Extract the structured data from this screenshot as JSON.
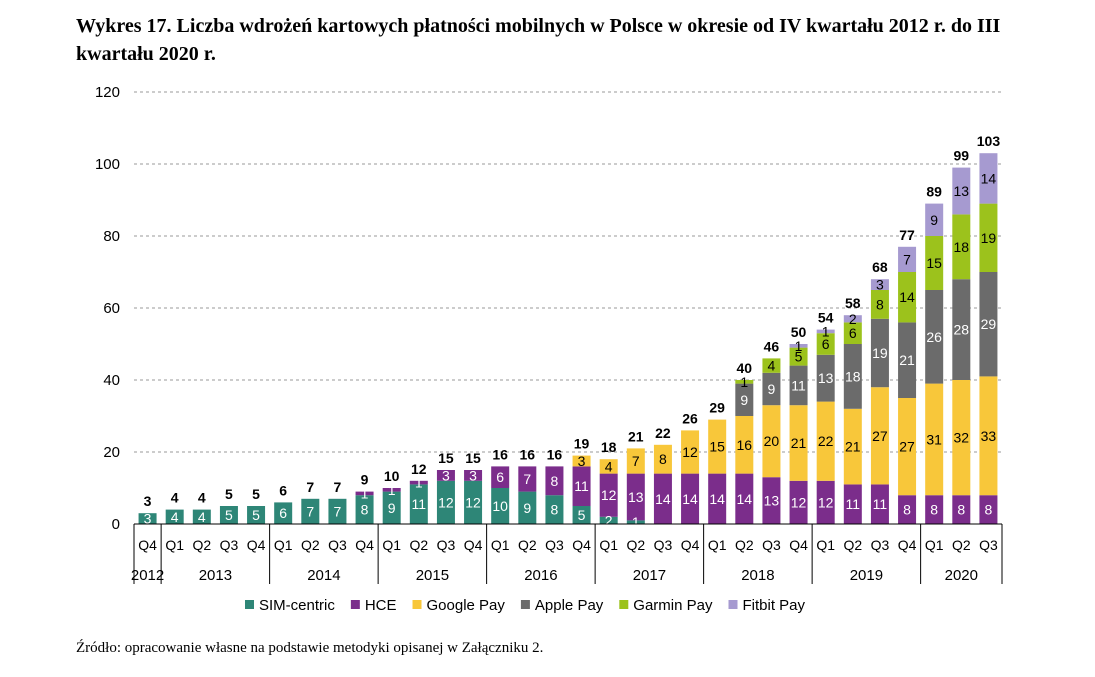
{
  "title": "Wykres 17. Liczba wdrożeń kartowych płatności mobilnych w Polsce w okresie od IV kwartału 2012 r. do III kwartału 2020 r.",
  "source": "Źródło: opracowanie własne na podstawie metodyki opisanej w Załączniku 2.",
  "chart_data": {
    "type": "bar",
    "stacked": true,
    "categories": [
      "Q4",
      "Q1",
      "Q2",
      "Q3",
      "Q4",
      "Q1",
      "Q2",
      "Q3",
      "Q4",
      "Q1",
      "Q2",
      "Q3",
      "Q4",
      "Q1",
      "Q2",
      "Q3",
      "Q4",
      "Q1",
      "Q2",
      "Q3",
      "Q4",
      "Q1",
      "Q2",
      "Q3",
      "Q4",
      "Q1",
      "Q2",
      "Q3",
      "Q4",
      "Q1",
      "Q2",
      "Q3"
    ],
    "years": [
      {
        "label": "2012",
        "count": 1
      },
      {
        "label": "2013",
        "count": 4
      },
      {
        "label": "2014",
        "count": 4
      },
      {
        "label": "2015",
        "count": 4
      },
      {
        "label": "2016",
        "count": 4
      },
      {
        "label": "2017",
        "count": 4
      },
      {
        "label": "2018",
        "count": 4
      },
      {
        "label": "2019",
        "count": 4
      },
      {
        "label": "2020",
        "count": 3
      }
    ],
    "series": [
      {
        "name": "SIM-centric",
        "color": "#2e8677",
        "values": [
          3,
          4,
          4,
          5,
          5,
          6,
          7,
          7,
          8,
          9,
          11,
          12,
          12,
          10,
          9,
          8,
          5,
          2,
          1,
          0,
          0,
          0,
          0,
          0,
          0,
          0,
          0,
          0,
          0,
          0,
          0,
          0
        ]
      },
      {
        "name": "HCE",
        "color": "#7b2d8b",
        "values": [
          0,
          0,
          0,
          0,
          0,
          0,
          0,
          0,
          1,
          1,
          1,
          3,
          3,
          6,
          7,
          8,
          11,
          12,
          13,
          14,
          14,
          14,
          14,
          13,
          12,
          12,
          11,
          11,
          8,
          8,
          8,
          8
        ]
      },
      {
        "name": "Google Pay",
        "color": "#f8c73a",
        "values": [
          0,
          0,
          0,
          0,
          0,
          0,
          0,
          0,
          0,
          0,
          0,
          0,
          0,
          0,
          0,
          0,
          3,
          4,
          7,
          8,
          12,
          15,
          16,
          20,
          21,
          22,
          21,
          27,
          27,
          31,
          32,
          33
        ]
      },
      {
        "name": "Apple Pay",
        "color": "#6b6b6b",
        "values": [
          0,
          0,
          0,
          0,
          0,
          0,
          0,
          0,
          0,
          0,
          0,
          0,
          0,
          0,
          0,
          0,
          0,
          0,
          0,
          0,
          0,
          0,
          9,
          9,
          11,
          13,
          18,
          19,
          21,
          26,
          28,
          29
        ]
      },
      {
        "name": "Garmin Pay",
        "color": "#9cc21c",
        "values": [
          0,
          0,
          0,
          0,
          0,
          0,
          0,
          0,
          0,
          0,
          0,
          0,
          0,
          0,
          0,
          0,
          0,
          0,
          0,
          0,
          0,
          0,
          1,
          4,
          5,
          6,
          6,
          8,
          14,
          15,
          18,
          19
        ]
      },
      {
        "name": "Fitbit Pay",
        "color": "#a69ad0",
        "values": [
          0,
          0,
          0,
          0,
          0,
          0,
          0,
          0,
          0,
          0,
          0,
          0,
          0,
          0,
          0,
          0,
          0,
          0,
          0,
          0,
          0,
          0,
          0,
          0,
          1,
          1,
          2,
          3,
          7,
          9,
          13,
          14
        ]
      }
    ],
    "totals": [
      3,
      4,
      4,
      5,
      5,
      6,
      7,
      7,
      9,
      10,
      12,
      15,
      15,
      16,
      16,
      16,
      19,
      18,
      21,
      22,
      26,
      29,
      40,
      46,
      50,
      54,
      58,
      68,
      77,
      89,
      99,
      103
    ],
    "ylim": [
      0,
      120
    ],
    "yticks": [
      0,
      20,
      40,
      60,
      80,
      100,
      120
    ],
    "grid": true,
    "legend_position": "bottom",
    "xlabel": "",
    "ylabel": ""
  }
}
